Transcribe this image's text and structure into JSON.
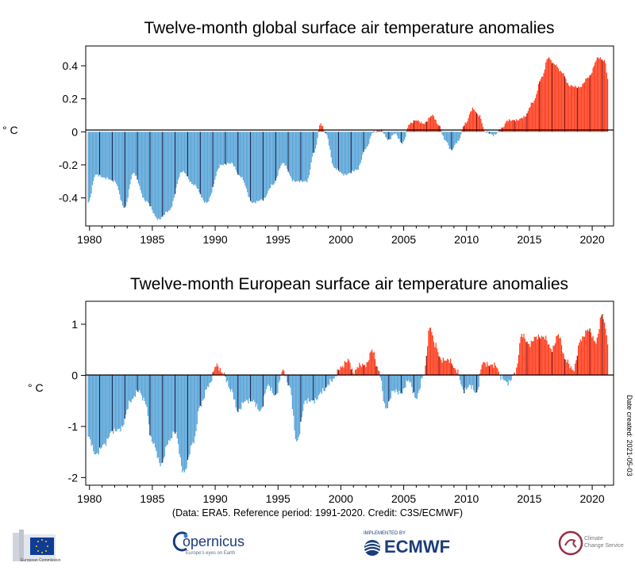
{
  "chart_data": [
    {
      "type": "bar",
      "title": "Twelve-month global surface air temperature anomalies",
      "ylabel": "° C",
      "xlabel": "",
      "xlim": [
        1979.7,
        2021.7
      ],
      "ylim": [
        -0.57,
        0.52
      ],
      "yticks": [
        -0.4,
        -0.2,
        0,
        0.2,
        0.4
      ],
      "ytick_labels": [
        "-0.4",
        "-0.2",
        "0",
        "0.2",
        "0.4"
      ],
      "xticks": [
        1980,
        1985,
        1990,
        1995,
        2000,
        2005,
        2010,
        2015,
        2020
      ],
      "xtick_labels": [
        "1980",
        "1985",
        "1990",
        "1995",
        "2000",
        "2005",
        "2010",
        "2015",
        "2020"
      ],
      "colors": {
        "positive": "#ff3f1f",
        "negative": "#5aa5d8",
        "december": "#142a58",
        "positive_december": "#8a0e06"
      },
      "curve_nodes": [
        [
          1979.9,
          -0.43
        ],
        [
          1980.5,
          -0.26
        ],
        [
          1981.3,
          -0.28
        ],
        [
          1982.0,
          -0.3
        ],
        [
          1982.8,
          -0.46
        ],
        [
          1983.5,
          -0.25
        ],
        [
          1984.5,
          -0.42
        ],
        [
          1985.5,
          -0.53
        ],
        [
          1986.3,
          -0.48
        ],
        [
          1987.4,
          -0.24
        ],
        [
          1988.3,
          -0.32
        ],
        [
          1989.3,
          -0.43
        ],
        [
          1990.5,
          -0.2
        ],
        [
          1991.3,
          -0.19
        ],
        [
          1992.0,
          -0.27
        ],
        [
          1993.0,
          -0.43
        ],
        [
          1993.8,
          -0.41
        ],
        [
          1994.6,
          -0.32
        ],
        [
          1995.4,
          -0.19
        ],
        [
          1996.3,
          -0.3
        ],
        [
          1997.3,
          -0.3
        ],
        [
          1997.9,
          -0.12
        ],
        [
          1998.4,
          0.05
        ],
        [
          1998.8,
          -0.01
        ],
        [
          1999.5,
          -0.22
        ],
        [
          2000.3,
          -0.26
        ],
        [
          2001.3,
          -0.23
        ],
        [
          2002.0,
          -0.1
        ],
        [
          2002.6,
          0.0
        ],
        [
          2003.2,
          0.01
        ],
        [
          2003.8,
          -0.05
        ],
        [
          2004.3,
          -0.01
        ],
        [
          2004.9,
          -0.07
        ],
        [
          2005.5,
          0.05
        ],
        [
          2006.0,
          0.07
        ],
        [
          2006.6,
          0.05
        ],
        [
          2007.3,
          0.1
        ],
        [
          2007.8,
          0.04
        ],
        [
          2008.3,
          -0.05
        ],
        [
          2008.8,
          -0.11
        ],
        [
          2009.3,
          -0.06
        ],
        [
          2009.9,
          0.05
        ],
        [
          2010.5,
          0.14
        ],
        [
          2011.0,
          0.1
        ],
        [
          2011.5,
          0.0
        ],
        [
          2012.2,
          -0.02
        ],
        [
          2012.8,
          0.02
        ],
        [
          2013.3,
          0.07
        ],
        [
          2014.0,
          0.07
        ],
        [
          2014.6,
          0.09
        ],
        [
          2015.3,
          0.18
        ],
        [
          2016.0,
          0.33
        ],
        [
          2016.5,
          0.45
        ],
        [
          2017.0,
          0.41
        ],
        [
          2017.6,
          0.36
        ],
        [
          2018.2,
          0.28
        ],
        [
          2019.0,
          0.27
        ],
        [
          2019.7,
          0.33
        ],
        [
          2020.5,
          0.45
        ],
        [
          2021.0,
          0.43
        ],
        [
          2021.3,
          0.3
        ]
      ]
    },
    {
      "type": "bar",
      "title": "Twelve-month European surface air temperature anomalies",
      "ylabel": "° C",
      "xlabel": "",
      "xlim": [
        1979.7,
        2021.7
      ],
      "ylim": [
        -2.15,
        1.45
      ],
      "yticks": [
        -2,
        -1,
        0,
        1
      ],
      "ytick_labels": [
        "-2",
        "-1",
        "0",
        "1"
      ],
      "xticks": [
        1980,
        1985,
        1990,
        1995,
        2000,
        2005,
        2010,
        2015,
        2020
      ],
      "xtick_labels": [
        "1980",
        "1985",
        "1990",
        "1995",
        "2000",
        "2005",
        "2010",
        "2015",
        "2020"
      ],
      "colors": {
        "positive": "#ff3f1f",
        "negative": "#5aa5d8",
        "december": "#142a58",
        "positive_december": "#8a0e06"
      },
      "curve_nodes": [
        [
          1979.9,
          -1.2
        ],
        [
          1980.5,
          -1.55
        ],
        [
          1981.2,
          -1.35
        ],
        [
          1981.8,
          -1.1
        ],
        [
          1982.5,
          -1.05
        ],
        [
          1983.3,
          -0.5
        ],
        [
          1983.9,
          -0.3
        ],
        [
          1984.4,
          -0.5
        ],
        [
          1985.0,
          -1.3
        ],
        [
          1985.7,
          -1.75
        ],
        [
          1986.3,
          -1.3
        ],
        [
          1986.8,
          -1.1
        ],
        [
          1987.5,
          -1.9
        ],
        [
          1988.3,
          -1.3
        ],
        [
          1988.8,
          -0.6
        ],
        [
          1989.5,
          -0.2
        ],
        [
          1990.1,
          0.2
        ],
        [
          1990.6,
          0.05
        ],
        [
          1991.3,
          -0.3
        ],
        [
          1991.8,
          -0.7
        ],
        [
          1992.4,
          -0.5
        ],
        [
          1993.0,
          -0.5
        ],
        [
          1993.6,
          -0.7
        ],
        [
          1994.2,
          -0.2
        ],
        [
          1994.8,
          -0.4
        ],
        [
          1995.4,
          0.1
        ],
        [
          1995.9,
          -0.2
        ],
        [
          1996.5,
          -1.3
        ],
        [
          1997.2,
          -0.5
        ],
        [
          1997.9,
          -0.5
        ],
        [
          1998.6,
          -0.3
        ],
        [
          1999.3,
          -0.1
        ],
        [
          2000.0,
          0.15
        ],
        [
          2000.6,
          0.3
        ],
        [
          2001.0,
          0.05
        ],
        [
          2001.5,
          0.2
        ],
        [
          2002.0,
          0.2
        ],
        [
          2002.5,
          0.5
        ],
        [
          2003.0,
          0.1
        ],
        [
          2003.6,
          -0.65
        ],
        [
          2004.2,
          -0.3
        ],
        [
          2004.8,
          -0.35
        ],
        [
          2005.4,
          -0.1
        ],
        [
          2006.0,
          -0.45
        ],
        [
          2006.6,
          0.0
        ],
        [
          2007.1,
          0.95
        ],
        [
          2007.5,
          0.6
        ],
        [
          2008.0,
          0.3
        ],
        [
          2008.6,
          0.3
        ],
        [
          2009.2,
          0.1
        ],
        [
          2009.8,
          -0.3
        ],
        [
          2010.3,
          -0.2
        ],
        [
          2010.8,
          -0.35
        ],
        [
          2011.3,
          0.25
        ],
        [
          2011.8,
          0.2
        ],
        [
          2012.3,
          0.2
        ],
        [
          2012.8,
          -0.05
        ],
        [
          2013.3,
          -0.15
        ],
        [
          2013.9,
          0.05
        ],
        [
          2014.4,
          0.8
        ],
        [
          2015.0,
          0.6
        ],
        [
          2015.5,
          0.75
        ],
        [
          2016.2,
          0.75
        ],
        [
          2016.8,
          0.5
        ],
        [
          2017.3,
          0.8
        ],
        [
          2017.9,
          0.3
        ],
        [
          2018.5,
          0.1
        ],
        [
          2019.1,
          0.7
        ],
        [
          2019.7,
          0.9
        ],
        [
          2020.3,
          0.65
        ],
        [
          2020.8,
          1.2
        ],
        [
          2021.1,
          0.9
        ],
        [
          2021.3,
          0.45
        ]
      ]
    }
  ],
  "footer": {
    "credit": "(Data: ERA5.  Reference period: 1991-2020.  Credit: C3S/ECMWF)",
    "date_created": "Date created: 2021-05-03",
    "logos": {
      "ec": "European Commission",
      "copernicus_word": "opernicus",
      "copernicus_sub": "Europe's eyes on Earth",
      "ecmwf_pre": "IMPLEMENTED BY",
      "ecmwf": "ECMWF",
      "c3s_1": "Climate",
      "c3s_2": "Change Service"
    }
  }
}
